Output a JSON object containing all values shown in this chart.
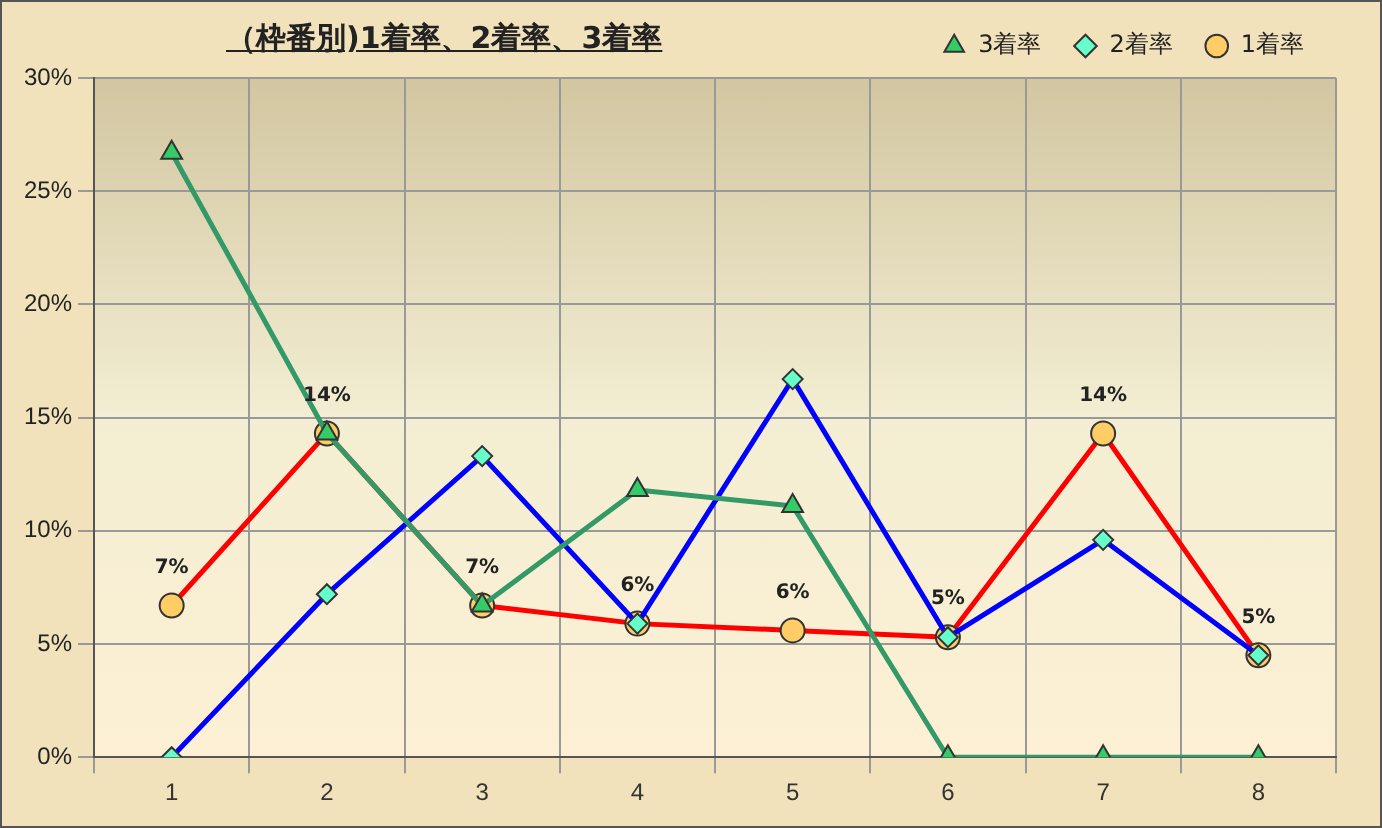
{
  "chart_data": {
    "type": "line",
    "title": "（枠番別)1着率、2着率、3着率",
    "categories": [
      "1",
      "2",
      "3",
      "4",
      "5",
      "6",
      "7",
      "8"
    ],
    "series": [
      {
        "name": "3着率",
        "color": "#339966",
        "marker": "triangle",
        "values": [
          26.7,
          14.3,
          6.7,
          11.8,
          11.1,
          0,
          0,
          0
        ]
      },
      {
        "name": "2着率",
        "color": "#0000ff",
        "marker": "diamond",
        "values": [
          0,
          7.2,
          13.3,
          5.9,
          16.7,
          5.3,
          9.6,
          4.5
        ]
      },
      {
        "name": "1着率",
        "color": "#ff0000",
        "marker": "circle",
        "values": [
          6.7,
          14.3,
          6.7,
          5.9,
          5.6,
          5.3,
          14.3,
          4.5
        ],
        "value_labels": [
          "7%",
          "14%",
          "7%",
          "6%",
          "6%",
          "5%",
          "14%",
          "5%"
        ]
      }
    ],
    "ylim": [
      0,
      30
    ],
    "yticks": [
      {
        "value": 0,
        "label": "0%"
      },
      {
        "value": 5,
        "label": "5%"
      },
      {
        "value": 10,
        "label": "10%"
      },
      {
        "value": 15,
        "label": "15%"
      },
      {
        "value": 20,
        "label": "20%"
      },
      {
        "value": 25,
        "label": "25%"
      },
      {
        "value": 30,
        "label": "30%"
      }
    ],
    "grid": true,
    "legend": "top right"
  }
}
